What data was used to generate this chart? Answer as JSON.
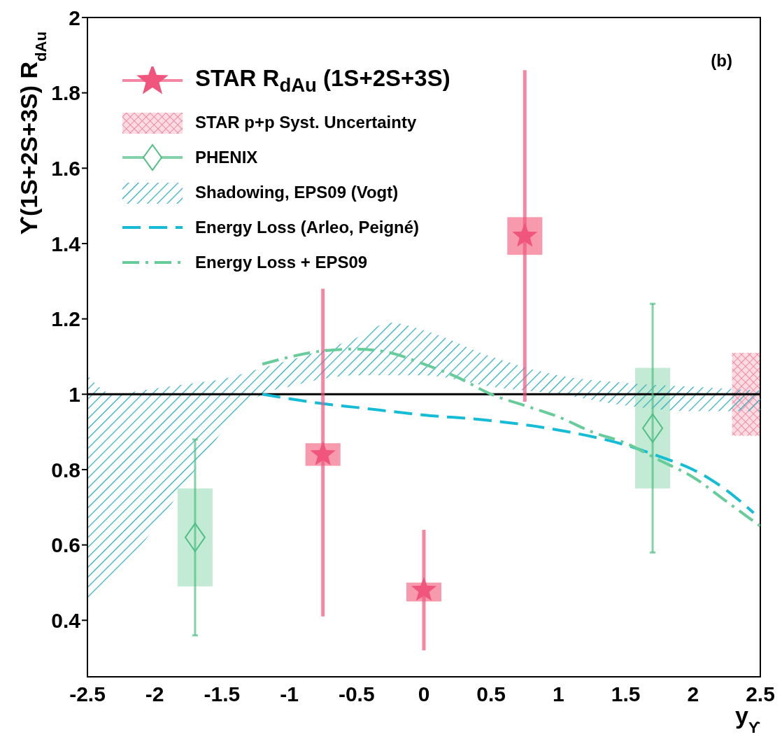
{
  "chart_data": {
    "type": "scatter",
    "xlabel": "y$_{ϒ}$",
    "ylabel": "ϒ(1S+2S+3S) R$_{dAu}$",
    "xlim": [
      -2.5,
      2.5
    ],
    "xticks": [
      -2.5,
      -2,
      -1.5,
      -1,
      -0.5,
      0,
      0.5,
      1,
      1.5,
      2,
      2.5
    ],
    "ylim": [
      0.25,
      2
    ],
    "yticks": [
      0.4,
      0.6,
      0.8,
      1,
      1.2,
      1.4,
      1.6,
      1.8,
      2
    ],
    "legend": "top left",
    "annotations": [
      "(b)"
    ],
    "ref_lines": [
      {
        "axis": "y",
        "value": 1,
        "color": "#000000"
      }
    ],
    "series": [
      {
        "name": "STAR R$_{dAu}$ (1S+2S+3S)",
        "marker": "star",
        "color": "#f0557d",
        "x": [
          -0.75,
          0,
          0.75
        ],
        "values": [
          0.84,
          0.48,
          1.42
        ],
        "errors": [
          [
            0.41,
            1.28
          ],
          [
            0.32,
            0.64
          ],
          [
            0.98,
            1.86
          ]
        ]
      },
      {
        "type": "bar",
        "color": "#f7889f",
        "x": [
          -0.75,
          0,
          0.75
        ],
        "base": [
          0.81,
          0.45,
          1.37
        ],
        "values": [
          0.06,
          0.05,
          0.1
        ]
      },
      {
        "name": "STAR p+p Syst. Uncertainty",
        "type": "bar",
        "color": "#f28aa3",
        "x": [
          2.42
        ],
        "base": [
          0.89
        ],
        "values": [
          0.22
        ]
      },
      {
        "name": "PHENIX",
        "marker": "diamond",
        "color": "#4fbf85",
        "x": [
          -1.7,
          1.7
        ],
        "values": [
          0.62,
          0.91
        ],
        "errors": [
          [
            0.36,
            0.88
          ],
          [
            0.58,
            1.24
          ]
        ]
      },
      {
        "type": "bar",
        "color": "#b8e6cc",
        "x": [
          -1.7,
          1.7
        ],
        "base": [
          0.49,
          0.75
        ],
        "values": [
          0.26,
          0.32
        ]
      },
      {
        "name": "Shadowing, EPS09 (Vogt)",
        "type": "area",
        "color": "#2aaabd",
        "x": [
          -2.5,
          -2.3,
          -2.1,
          -1.7,
          -1.5,
          -1.2,
          -1,
          -0.5,
          -0.25,
          0,
          0.5,
          1,
          1.5,
          2,
          2.5
        ],
        "values": [
          null,
          null,
          null,
          null,
          null,
          null,
          null,
          null,
          null,
          null,
          null,
          null,
          null,
          null,
          null
        ],
        "lower": [
          0.45,
          0.52,
          0.6,
          0.8,
          0.9,
          1.0,
          1.02,
          1.05,
          1.05,
          1.05,
          1.02,
          1.0,
          0.97,
          0.955,
          0.955
        ],
        "upper": [
          1.05,
          1.0,
          1.01,
          1.03,
          1.04,
          1.07,
          1.09,
          1.15,
          1.19,
          1.17,
          1.1,
          1.05,
          1.03,
          1.02,
          1.01
        ]
      },
      {
        "name": "Energy Loss (Arleo, Peigné)",
        "type": "line",
        "line_style": "dashed",
        "color": "#14bcd6",
        "x": [
          -1.2,
          -0.75,
          -0.5,
          0,
          0.5,
          1,
          1.5,
          1.75,
          2,
          2.25,
          2.45
        ],
        "values": [
          1.0,
          0.975,
          0.965,
          0.945,
          0.93,
          0.905,
          0.865,
          0.835,
          0.8,
          0.745,
          0.685
        ]
      },
      {
        "name": "Energy Loss + EPS09",
        "type": "line",
        "line_style": "dashdot",
        "color": "#66cc99",
        "x": [
          -1.2,
          -0.75,
          -0.5,
          -0.25,
          0,
          0.25,
          0.5,
          0.75,
          1,
          1.25,
          1.5,
          1.75,
          2,
          2.25,
          2.5
        ],
        "values": [
          1.08,
          1.115,
          1.12,
          1.11,
          1.08,
          1.045,
          1.0,
          0.97,
          0.94,
          0.9,
          0.87,
          0.825,
          0.78,
          0.715,
          0.65
        ]
      }
    ]
  }
}
